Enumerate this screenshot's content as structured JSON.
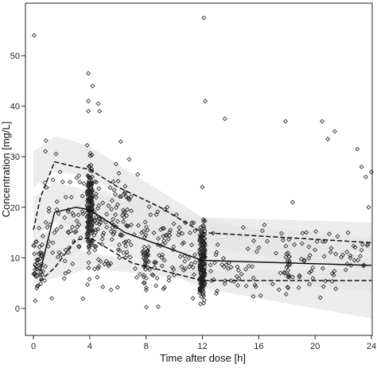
{
  "chart_data": {
    "type": "scatter",
    "title": "",
    "xlabel": "Time after dose [h]",
    "ylabel": "Concentration [mg/L]",
    "xlim": [
      0,
      24
    ],
    "ylim": [
      -4,
      60
    ],
    "xticks": [
      0,
      4,
      8,
      12,
      16,
      20,
      24
    ],
    "yticks": [
      0,
      10,
      20,
      30,
      40,
      50
    ],
    "grid": false,
    "legend": "none",
    "colors": {
      "points": "#222222",
      "lines": "#111111",
      "band": "#e5e5e5"
    },
    "bands": [
      {
        "name": "",
        "x": [
          0,
          1.5,
          3,
          4,
          12,
          24
        ],
        "lower": [
          14,
          17,
          16.5,
          16,
          12,
          7.5
        ],
        "upper": [
          22,
          25,
          24,
          23,
          17,
          14
        ]
      },
      {
        "name": "",
        "x": [
          0,
          1.5,
          3,
          4,
          12,
          24
        ],
        "lower": [
          5,
          6,
          7,
          8,
          5.5,
          3.5
        ],
        "upper": [
          11,
          12,
          12,
          11,
          7.5,
          7.5
        ]
      },
      {
        "name": "",
        "x": [
          0,
          1.5,
          3,
          4,
          12,
          24
        ],
        "lower": [
          24,
          27,
          26.5,
          26,
          13,
          11
        ],
        "upper": [
          31,
          34,
          33,
          32,
          18,
          17
        ]
      },
      {
        "name": "",
        "x": [
          0,
          1.5,
          3,
          4,
          12,
          24
        ],
        "lower": [
          6,
          9,
          11,
          14,
          4,
          -2
        ],
        "upper": [
          14,
          16,
          20,
          24,
          18,
          10
        ]
      }
    ],
    "series": [
      {
        "name": "",
        "style": "solid",
        "x": [
          0,
          0.5,
          1.5,
          3,
          4,
          6.5,
          10,
          12,
          24
        ],
        "y": [
          8.5,
          7.5,
          19,
          20,
          19.5,
          15,
          11.5,
          9.5,
          8.5
        ]
      },
      {
        "name": "",
        "style": "dashed",
        "x": [
          0,
          0.5,
          1.5,
          3,
          4,
          6,
          9,
          12,
          24
        ],
        "y": [
          15.5,
          22,
          29,
          28,
          27.5,
          24,
          20,
          15,
          13
        ]
      },
      {
        "name": "",
        "style": "dashed",
        "x": [
          0,
          0.5,
          1.5,
          3,
          4,
          7,
          12,
          24
        ],
        "y": [
          6.5,
          5.5,
          8,
          13.5,
          14,
          9,
          5.5,
          5.5
        ]
      }
    ],
    "points": {
      "x": [
        0.05,
        0.4,
        0.8,
        1.3,
        1.5,
        1.9,
        2.3,
        2.6,
        3.2,
        3.9,
        3.9,
        3.9,
        4.0,
        4.2,
        4.4,
        4.6,
        4.7,
        6.2,
        6.8,
        7.4,
        9.5,
        12.1,
        12.2,
        12.0,
        13.6,
        14.9,
        16.0,
        16.4,
        17.9,
        18.4,
        20.5,
        20.9,
        21.4,
        23.0,
        23.3,
        23.6,
        24.0,
        23.8,
        23.7
      ],
      "y": [
        54,
        8.5,
        5.5,
        2,
        15,
        27,
        22,
        25,
        18.5,
        39,
        41,
        46.5,
        28,
        44,
        15,
        40.5,
        39,
        33,
        29.5,
        26.5,
        20,
        57.5,
        41,
        24,
        37.5,
        16,
        12,
        16.5,
        37,
        21,
        37,
        33.5,
        35,
        31.5,
        28,
        26,
        27,
        20,
        12.5
      ]
    }
  }
}
